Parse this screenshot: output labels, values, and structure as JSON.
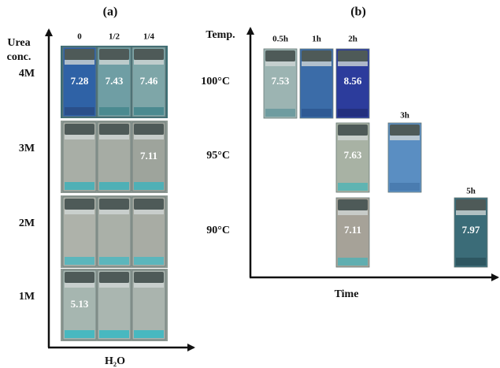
{
  "panel_a": {
    "label": "(a)",
    "y_axis_title": [
      "Urea",
      "conc."
    ],
    "x_axis_title": "H₂O",
    "columns": [
      "0",
      "1/2",
      "1/4"
    ],
    "rows": [
      {
        "label": "4M",
        "readings": [
          "7.28",
          "7.43",
          "7.46"
        ]
      },
      {
        "label": "3M",
        "readings": [
          null,
          null,
          "7.11"
        ]
      },
      {
        "label": "2M",
        "readings": [
          null,
          null,
          null
        ]
      },
      {
        "label": "1M",
        "readings": [
          "5.13",
          null,
          null
        ]
      }
    ]
  },
  "panel_b": {
    "label": "(b)",
    "y_axis_title": "Temp.",
    "x_axis_title": "Time",
    "columns": [
      "0.5h",
      "1h",
      "2h",
      "3h",
      "5h"
    ],
    "rows": [
      {
        "label": "100°C",
        "readings": [
          "7.53",
          null,
          "8.56",
          null,
          null
        ]
      },
      {
        "label": "95°C",
        "readings": [
          null,
          null,
          "7.63",
          null,
          null
        ]
      },
      {
        "label": "90°C",
        "readings": [
          null,
          null,
          "7.11",
          null,
          "7.97"
        ]
      }
    ]
  }
}
